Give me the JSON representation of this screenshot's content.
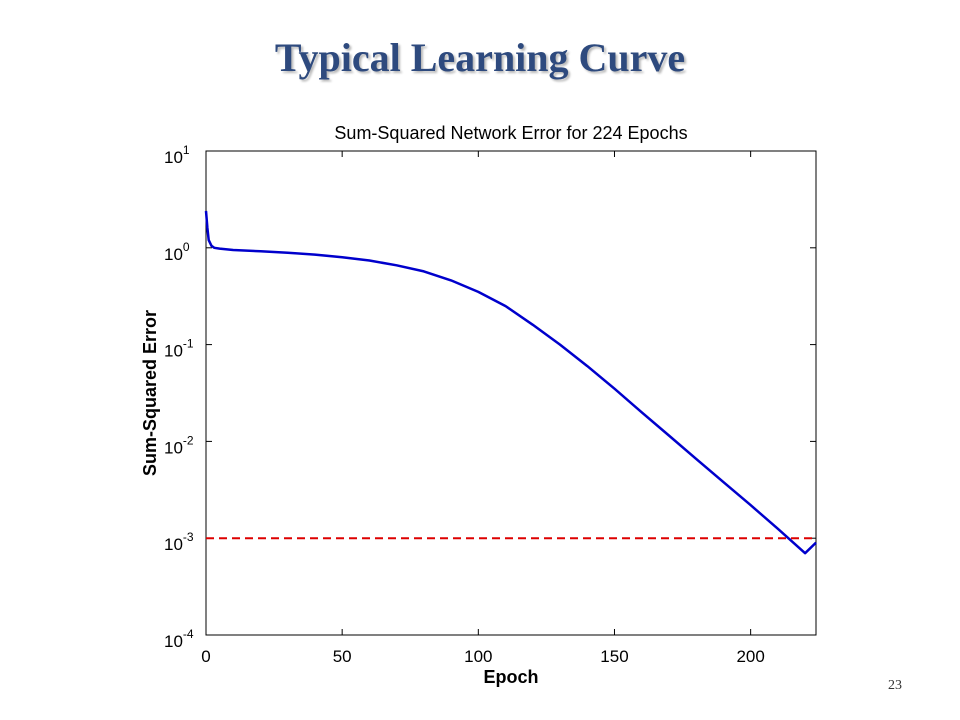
{
  "slide": {
    "title": "Typical Learning Curve",
    "page_number": "23"
  },
  "colors": {
    "title": "#2e4a7e",
    "curve": "#0000cc",
    "goal_line": "#dd0000"
  },
  "chart_data": {
    "type": "line",
    "title": "Sum-Squared Network Error for 224 Epochs",
    "xlabel": "Epoch",
    "ylabel": "Sum-Squared Error",
    "xlim": [
      0,
      224
    ],
    "ylim": [
      0.0001,
      10
    ],
    "yscale": "log",
    "xticks": [
      0,
      50,
      100,
      150,
      200
    ],
    "xtick_labels": [
      "0",
      "50",
      "100",
      "150",
      "200"
    ],
    "yticks": [
      10,
      1,
      0.1,
      0.01,
      0.001,
      0.0001
    ],
    "ytick_labels": [
      {
        "base": "10",
        "exp": "1"
      },
      {
        "base": "10",
        "exp": "0"
      },
      {
        "base": "10",
        "exp": "-1"
      },
      {
        "base": "10",
        "exp": "-2"
      },
      {
        "base": "10",
        "exp": "-3"
      },
      {
        "base": "10",
        "exp": "-4"
      }
    ],
    "grid": false,
    "series": [
      {
        "x": [
          0,
          0.5,
          1,
          2,
          3,
          5,
          10,
          20,
          30,
          40,
          50,
          60,
          70,
          80,
          90,
          100,
          110,
          120,
          130,
          140,
          150,
          160,
          170,
          180,
          190,
          200,
          210,
          220,
          224
        ],
        "y": [
          2.4,
          1.6,
          1.2,
          1.05,
          1.0,
          0.98,
          0.95,
          0.92,
          0.89,
          0.85,
          0.8,
          0.74,
          0.66,
          0.57,
          0.46,
          0.35,
          0.25,
          0.16,
          0.1,
          0.06,
          0.035,
          0.02,
          0.0115,
          0.0066,
          0.0038,
          0.0022,
          0.00125,
          0.0007,
          0.0009
        ]
      },
      {
        "x": [
          0,
          224
        ],
        "y": [
          0.001,
          0.001
        ],
        "style": "dashed"
      }
    ]
  }
}
